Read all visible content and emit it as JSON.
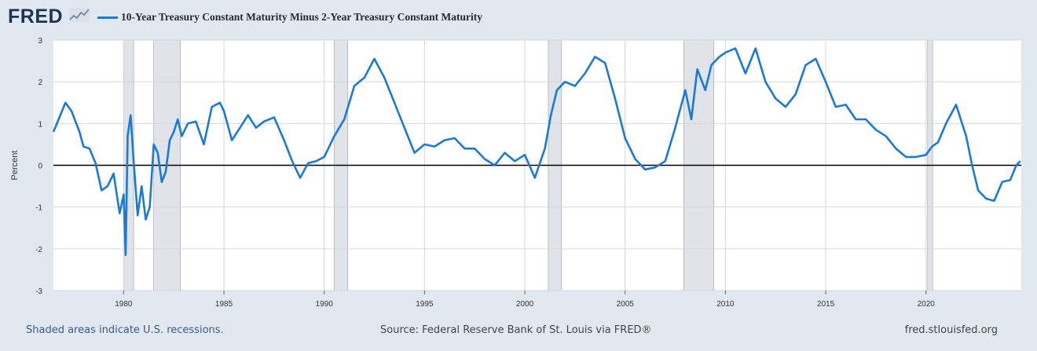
{
  "header": {
    "logo_text": "FRED",
    "logo_icon": "trend-line-icon"
  },
  "colors": {
    "series": "#1a7ad4",
    "background": "#e1e9f0",
    "plot_bg": "#ffffff",
    "recession": "#e0e3e7",
    "grid": "#d6d6d6",
    "zero_line": "#000000"
  },
  "chart_data": {
    "type": "line",
    "title": "",
    "xlabel": "",
    "ylabel": "Percent",
    "xlim": [
      1976.5,
      2024.75
    ],
    "ylim": [
      -3,
      3
    ],
    "xticks": [
      1980,
      1985,
      1990,
      1995,
      2000,
      2005,
      2010,
      2015,
      2020
    ],
    "yticks": [
      -3,
      -2,
      -1,
      0,
      1,
      2,
      3
    ],
    "grid": true,
    "legend_position": "top-left",
    "recessions": [
      [
        1980.0,
        1980.5
      ],
      [
        1981.5,
        1982.83
      ],
      [
        1990.5,
        1991.17
      ],
      [
        2001.17,
        2001.83
      ],
      [
        2007.92,
        2009.42
      ],
      [
        2020.08,
        2020.33
      ]
    ],
    "series": [
      {
        "name": "10-Year Treasury Constant Maturity Minus 2-Year Treasury Constant Maturity",
        "x": [
          1976.5,
          1976.8,
          1977.1,
          1977.4,
          1977.8,
          1978.0,
          1978.3,
          1978.6,
          1978.9,
          1979.2,
          1979.5,
          1979.8,
          1980.0,
          1980.1,
          1980.2,
          1980.35,
          1980.5,
          1980.7,
          1980.9,
          1981.1,
          1981.3,
          1981.5,
          1981.7,
          1981.9,
          1982.1,
          1982.3,
          1982.5,
          1982.7,
          1982.9,
          1983.2,
          1983.6,
          1984.0,
          1984.4,
          1984.8,
          1985.0,
          1985.4,
          1985.8,
          1986.2,
          1986.6,
          1987.0,
          1987.5,
          1988.0,
          1988.4,
          1988.8,
          1989.2,
          1989.6,
          1990.0,
          1990.5,
          1991.0,
          1991.5,
          1992.0,
          1992.5,
          1993.0,
          1993.5,
          1994.0,
          1994.5,
          1995.0,
          1995.5,
          1996.0,
          1996.5,
          1997.0,
          1997.5,
          1998.0,
          1998.5,
          1999.0,
          1999.5,
          2000.0,
          2000.5,
          2001.0,
          2001.3,
          2001.6,
          2002.0,
          2002.5,
          2003.0,
          2003.5,
          2004.0,
          2004.5,
          2005.0,
          2005.5,
          2006.0,
          2006.5,
          2007.0,
          2007.5,
          2008.0,
          2008.3,
          2008.6,
          2009.0,
          2009.3,
          2009.7,
          2010.0,
          2010.5,
          2011.0,
          2011.5,
          2012.0,
          2012.5,
          2013.0,
          2013.5,
          2014.0,
          2014.5,
          2015.0,
          2015.5,
          2016.0,
          2016.5,
          2017.0,
          2017.5,
          2018.0,
          2018.5,
          2019.0,
          2019.5,
          2020.0,
          2020.3,
          2020.6,
          2021.0,
          2021.5,
          2022.0,
          2022.3,
          2022.6,
          2023.0,
          2023.4,
          2023.8,
          2024.2,
          2024.5,
          2024.7
        ],
        "y": [
          0.8,
          1.15,
          1.5,
          1.3,
          0.8,
          0.45,
          0.4,
          0.05,
          -0.6,
          -0.5,
          -0.2,
          -1.15,
          -0.7,
          -2.15,
          0.7,
          1.2,
          0.1,
          -1.2,
          -0.5,
          -1.3,
          -1.0,
          0.5,
          0.3,
          -0.4,
          -0.15,
          0.6,
          0.8,
          1.1,
          0.7,
          1.0,
          1.05,
          0.5,
          1.4,
          1.5,
          1.3,
          0.6,
          0.9,
          1.2,
          0.9,
          1.05,
          1.15,
          0.6,
          0.1,
          -0.3,
          0.05,
          0.1,
          0.2,
          0.7,
          1.1,
          1.9,
          2.1,
          2.55,
          2.1,
          1.5,
          0.9,
          0.3,
          0.5,
          0.45,
          0.6,
          0.65,
          0.4,
          0.4,
          0.15,
          0.0,
          0.3,
          0.1,
          0.25,
          -0.3,
          0.4,
          1.2,
          1.8,
          2.0,
          1.9,
          2.2,
          2.6,
          2.45,
          1.6,
          0.65,
          0.15,
          -0.1,
          -0.05,
          0.1,
          0.9,
          1.8,
          1.1,
          2.3,
          1.8,
          2.4,
          2.6,
          2.7,
          2.8,
          2.2,
          2.8,
          2.0,
          1.6,
          1.4,
          1.7,
          2.4,
          2.55,
          2.0,
          1.4,
          1.45,
          1.1,
          1.1,
          0.85,
          0.7,
          0.4,
          0.2,
          0.2,
          0.25,
          0.45,
          0.55,
          1.0,
          1.45,
          0.7,
          0.0,
          -0.6,
          -0.8,
          -0.85,
          -0.4,
          -0.35,
          0.0,
          0.1
        ]
      }
    ]
  },
  "footer": {
    "note": "Shaded areas indicate U.S. recessions.",
    "source": "Source: Federal Reserve Bank of St. Louis via FRED®",
    "site": "fred.stlouisfed.org"
  }
}
